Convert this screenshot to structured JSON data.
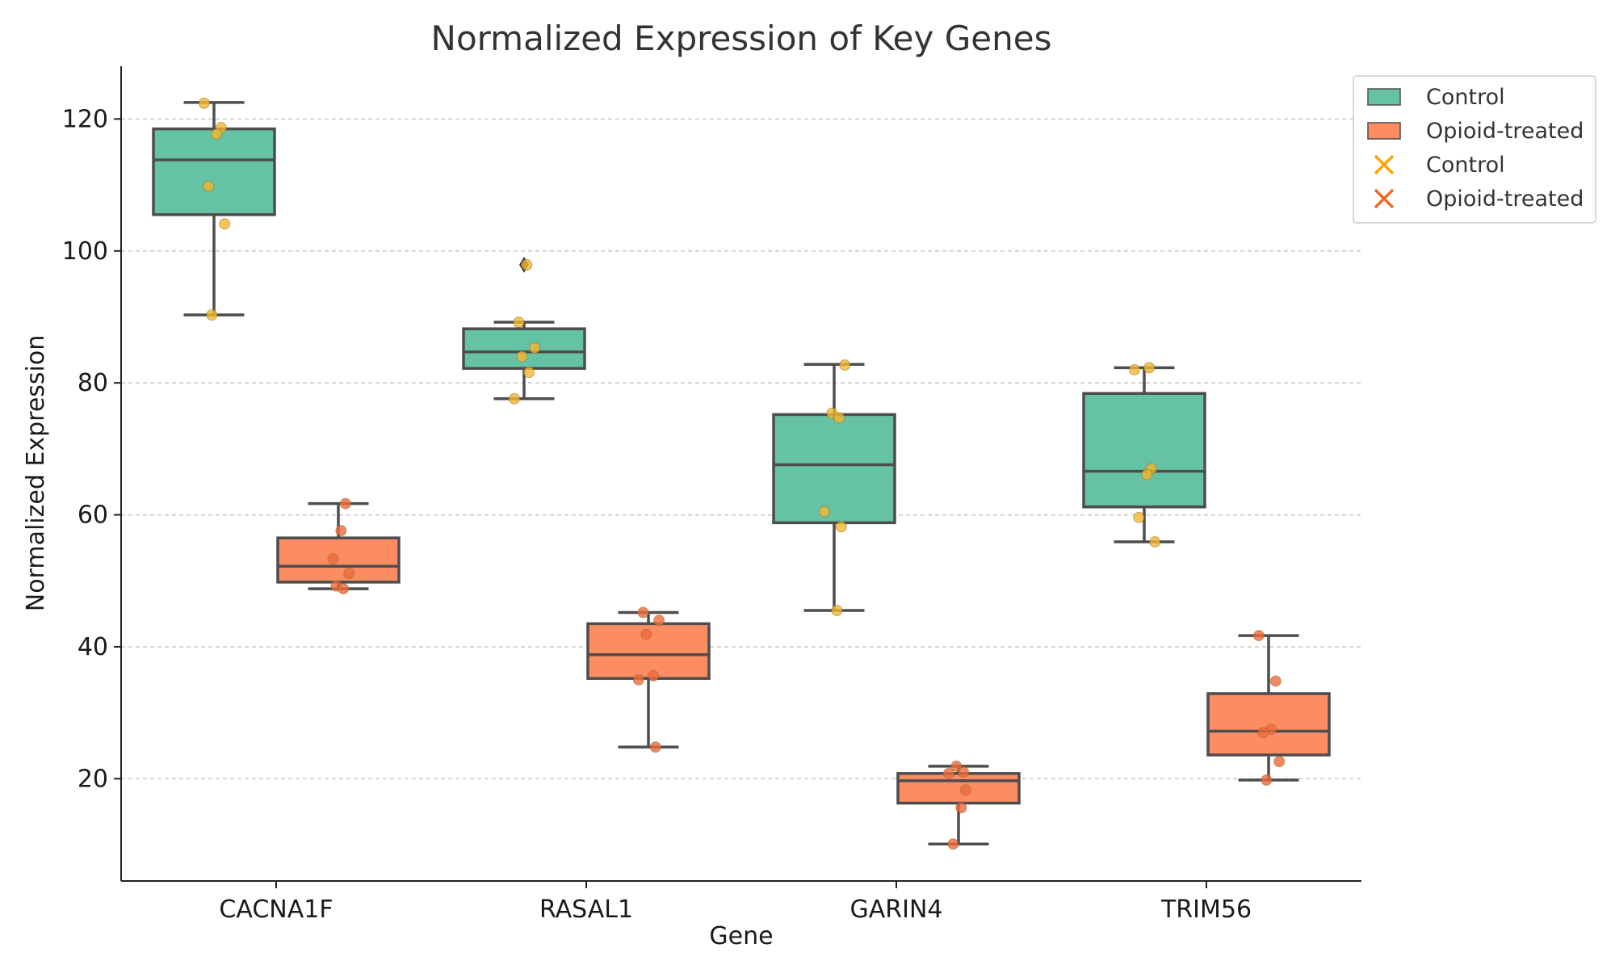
{
  "chart_data": {
    "type": "box",
    "title": "Normalized Expression of Key Genes",
    "xlabel": "Gene",
    "ylabel": "Normalized Expression",
    "ylim": [
      4.5,
      128
    ],
    "yticks": [
      20,
      40,
      60,
      80,
      100,
      120
    ],
    "grid": "horizontal dashed",
    "categories": [
      "CACNA1F",
      "RASAL1",
      "GARIN4",
      "TRIM56"
    ],
    "colors": {
      "Control": "#66c2a5",
      "Opioid-treated": "#fc8d62",
      "Control_points": "#f2b630",
      "Opioid-treated_points": "#ee6a3c"
    },
    "legend": {
      "position": "top-right",
      "entries": [
        {
          "label": "Control",
          "marker": "box",
          "color": "#66c2a5"
        },
        {
          "label": "Opioid-treated",
          "marker": "box",
          "color": "#fc8d62"
        },
        {
          "label": "Control",
          "marker": "x",
          "color": "#ffa500"
        },
        {
          "label": "Opioid-treated",
          "marker": "x",
          "color": "#ee6a24"
        }
      ]
    },
    "series": [
      {
        "name": "Control",
        "boxes": [
          {
            "category": "CACNA1F",
            "q1": 105.5,
            "median": 113.8,
            "q3": 118.5,
            "whisker_low": 90.3,
            "whisker_high": 122.5,
            "outliers": []
          },
          {
            "category": "RASAL1",
            "q1": 82.2,
            "median": 84.7,
            "q3": 88.2,
            "whisker_low": 77.6,
            "whisker_high": 89.2,
            "outliers": [
              97.9
            ]
          },
          {
            "category": "GARIN4",
            "q1": 58.8,
            "median": 67.6,
            "q3": 75.2,
            "whisker_low": 45.5,
            "whisker_high": 82.8,
            "outliers": []
          },
          {
            "category": "TRIM56",
            "q1": 61.2,
            "median": 66.6,
            "q3": 78.4,
            "whisker_low": 55.9,
            "whisker_high": 82.3,
            "outliers": []
          }
        ],
        "points": [
          {
            "category": "CACNA1F",
            "values": [
              122.4,
              118.7,
              117.7,
              109.8,
              104.1,
              90.3
            ]
          },
          {
            "category": "RASAL1",
            "values": [
              97.9,
              89.2,
              85.3,
              84.0,
              81.6,
              77.6
            ]
          },
          {
            "category": "GARIN4",
            "values": [
              82.7,
              75.4,
              74.7,
              60.5,
              58.2,
              45.5
            ]
          },
          {
            "category": "TRIM56",
            "values": [
              82.3,
              82.0,
              67.0,
              66.1,
              59.6,
              55.9
            ]
          }
        ]
      },
      {
        "name": "Opioid-treated",
        "boxes": [
          {
            "category": "CACNA1F",
            "q1": 49.8,
            "median": 52.2,
            "q3": 56.5,
            "whisker_low": 48.8,
            "whisker_high": 61.7,
            "outliers": []
          },
          {
            "category": "RASAL1",
            "q1": 35.2,
            "median": 38.8,
            "q3": 43.5,
            "whisker_low": 24.8,
            "whisker_high": 45.2,
            "outliers": []
          },
          {
            "category": "GARIN4",
            "q1": 16.3,
            "median": 19.7,
            "q3": 20.8,
            "whisker_low": 10.1,
            "whisker_high": 21.9,
            "outliers": []
          },
          {
            "category": "TRIM56",
            "q1": 23.6,
            "median": 27.2,
            "q3": 32.9,
            "whisker_low": 19.8,
            "whisker_high": 41.7,
            "outliers": []
          }
        ],
        "points": [
          {
            "category": "CACNA1F",
            "values": [
              61.7,
              57.6,
              53.3,
              51.1,
              49.2,
              48.8
            ]
          },
          {
            "category": "RASAL1",
            "values": [
              45.2,
              44.0,
              41.9,
              35.6,
              35.0,
              24.8
            ]
          },
          {
            "category": "GARIN4",
            "values": [
              21.9,
              21.0,
              20.8,
              18.3,
              15.6,
              10.1
            ]
          },
          {
            "category": "TRIM56",
            "values": [
              41.7,
              34.8,
              27.5,
              27.0,
              22.6,
              19.8
            ]
          }
        ]
      }
    ]
  }
}
